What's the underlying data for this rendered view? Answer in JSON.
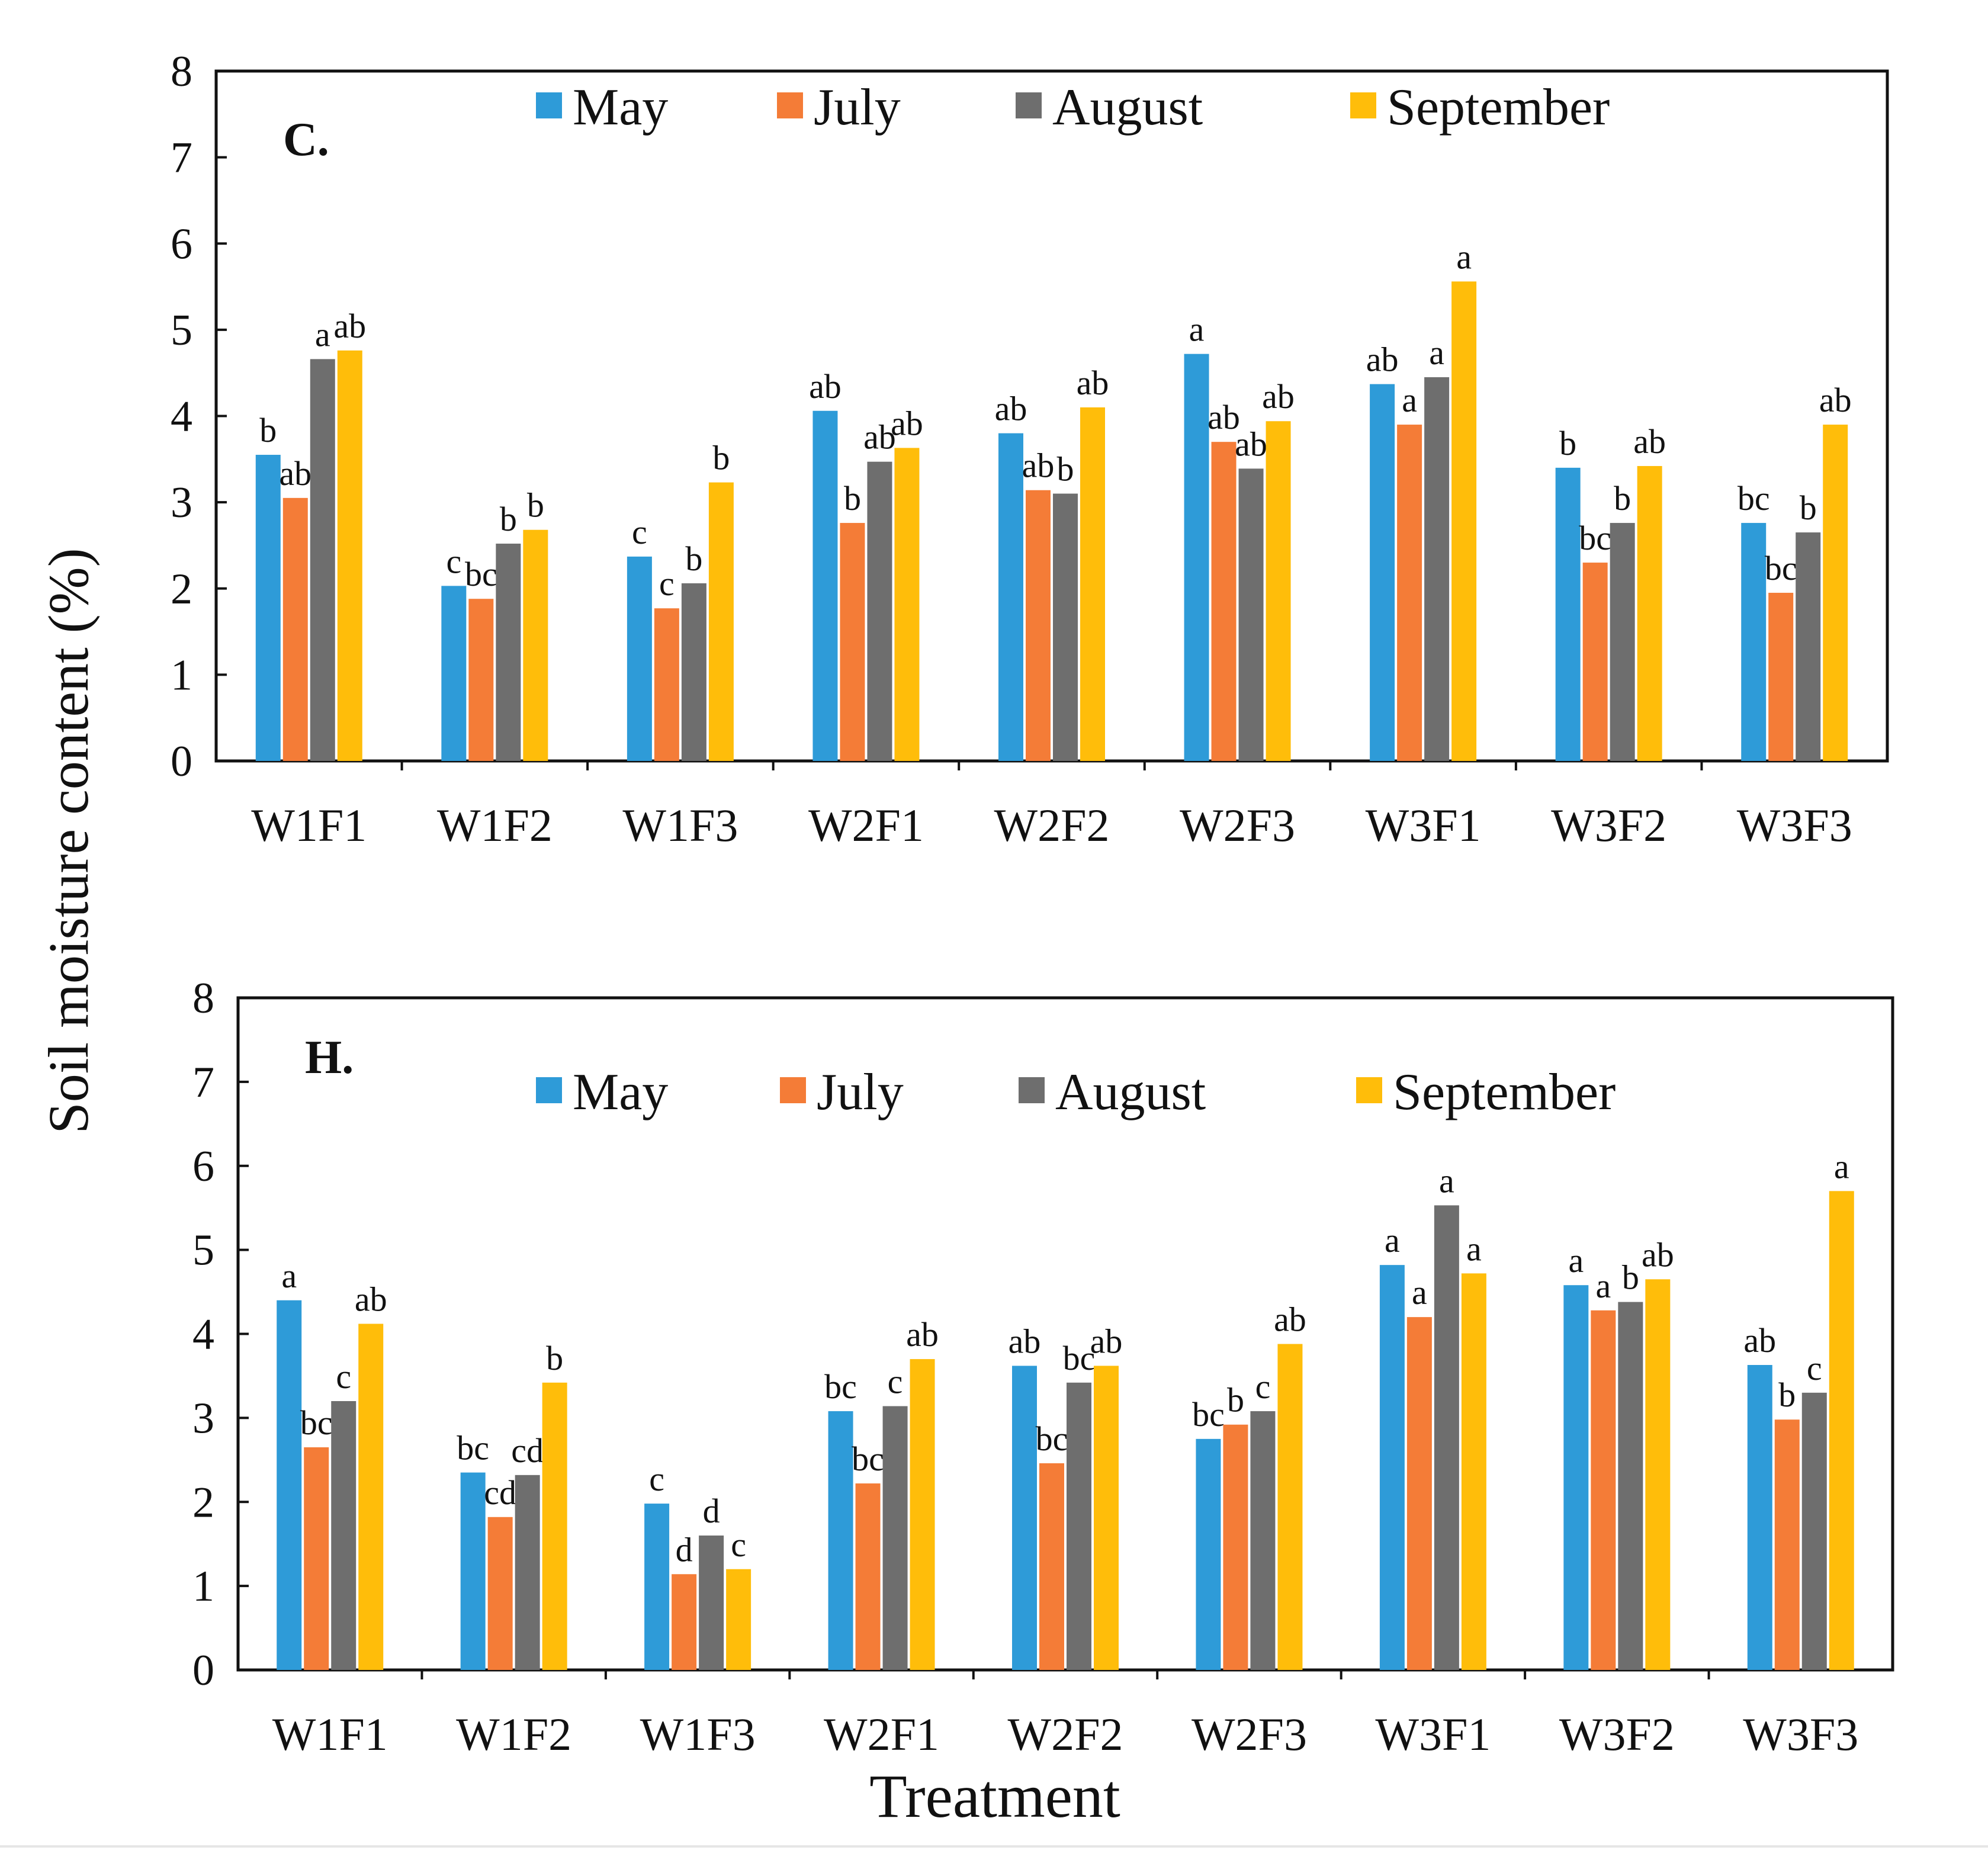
{
  "figure": {
    "ylabel": "Soil moisture content (%)",
    "xlabel": "Treatment"
  },
  "legend": {
    "items": [
      {
        "name": "May",
        "color": "#2E9BD8"
      },
      {
        "name": "July",
        "color": "#F47C37"
      },
      {
        "name": "August",
        "color": "#6E6E6E"
      },
      {
        "name": "September",
        "color": "#FFBD0A"
      }
    ]
  },
  "chart_data": [
    {
      "type": "bar",
      "title": "C.",
      "xlabel": "",
      "ylabel": "Soil moisture content (%)",
      "ylim": [
        0,
        8
      ],
      "yticks": [
        0,
        1,
        2,
        3,
        4,
        5,
        6,
        7,
        8
      ],
      "legend_position": "top",
      "categories": [
        "W1F1",
        "W1F2",
        "W1F3",
        "W2F1",
        "W2F2",
        "W2F3",
        "W3F1",
        "W3F2",
        "W3F3"
      ],
      "series": [
        {
          "name": "May",
          "color": "#2E9BD8",
          "values": [
            3.55,
            2.03,
            2.37,
            4.06,
            3.8,
            4.72,
            4.37,
            3.4,
            2.76
          ],
          "labels": [
            "b",
            "c",
            "c",
            "ab",
            "ab",
            "a",
            "ab",
            "b",
            "bc"
          ]
        },
        {
          "name": "July",
          "color": "#F47C37",
          "values": [
            3.05,
            1.88,
            1.77,
            2.76,
            3.14,
            3.7,
            3.9,
            2.3,
            1.95
          ],
          "labels": [
            "ab",
            "bc",
            "c",
            "b",
            "ab",
            "ab",
            "a",
            "bc",
            "bc"
          ]
        },
        {
          "name": "August",
          "color": "#6E6E6E",
          "values": [
            4.66,
            2.52,
            2.06,
            3.47,
            3.1,
            3.39,
            4.45,
            2.76,
            2.65
          ],
          "labels": [
            "a",
            "b",
            "b",
            "ab",
            "b",
            "ab",
            "a",
            "b",
            "b"
          ]
        },
        {
          "name": "September",
          "color": "#FFBD0A",
          "values": [
            4.76,
            2.68,
            3.23,
            3.63,
            4.1,
            3.94,
            5.56,
            3.42,
            3.9
          ],
          "labels": [
            "ab",
            "b",
            "b",
            "ab",
            "ab",
            "ab",
            "a",
            "ab",
            "ab"
          ]
        }
      ]
    },
    {
      "type": "bar",
      "title": "H.",
      "xlabel": "Treatment",
      "ylabel": "Soil moisture content (%)",
      "ylim": [
        0,
        8
      ],
      "yticks": [
        0,
        1,
        2,
        3,
        4,
        5,
        6,
        7,
        8
      ],
      "legend_position": "top",
      "categories": [
        "W1F1",
        "W1F2",
        "W1F3",
        "W2F1",
        "W2F2",
        "W2F3",
        "W3F1",
        "W3F2",
        "W3F3"
      ],
      "series": [
        {
          "name": "May",
          "color": "#2E9BD8",
          "values": [
            4.4,
            2.35,
            1.98,
            3.08,
            3.62,
            2.75,
            4.82,
            4.58,
            3.63
          ],
          "labels": [
            "a",
            "bc",
            "c",
            "bc",
            "ab",
            "bc",
            "a",
            "a",
            "ab"
          ]
        },
        {
          "name": "July",
          "color": "#F47C37",
          "values": [
            2.65,
            1.82,
            1.14,
            2.22,
            2.46,
            2.92,
            4.2,
            4.28,
            2.98
          ],
          "labels": [
            "bc",
            "cd",
            "d",
            "bc",
            "bc",
            "b",
            "a",
            "a",
            "b"
          ]
        },
        {
          "name": "August",
          "color": "#6E6E6E",
          "values": [
            3.2,
            2.32,
            1.6,
            3.14,
            3.42,
            3.08,
            5.53,
            4.38,
            3.3
          ],
          "labels": [
            "c",
            "cd",
            "d",
            "c",
            "bc",
            "c",
            "a",
            "b",
            "c"
          ]
        },
        {
          "name": "September",
          "color": "#FFBD0A",
          "values": [
            4.12,
            3.42,
            1.2,
            3.7,
            3.62,
            3.88,
            4.72,
            4.65,
            5.7
          ],
          "labels": [
            "ab",
            "b",
            "c",
            "ab",
            "ab",
            "ab",
            "a",
            "ab",
            "a"
          ]
        }
      ]
    }
  ]
}
